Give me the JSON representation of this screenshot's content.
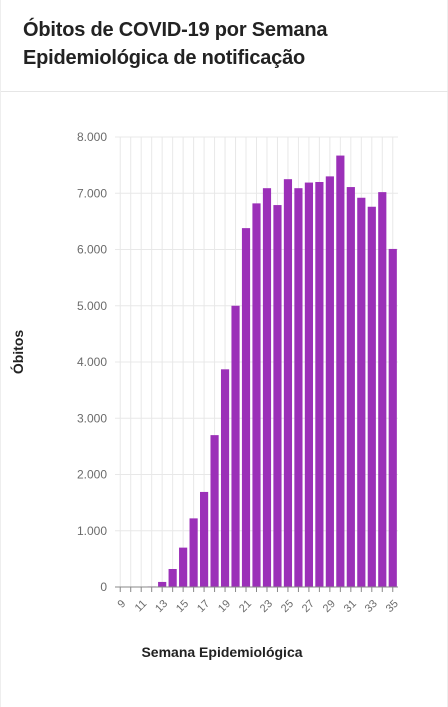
{
  "header": {
    "title": "Óbitos de COVID-19 por Semana Epidemiológica de notificação"
  },
  "colors": {
    "bar": "#9b30b8",
    "grid": "#e8e8e8",
    "axis": "#888888"
  },
  "chart_data": {
    "type": "bar",
    "title": "Óbitos de COVID-19 por Semana Epidemiológica de notificação",
    "xlabel": "Semana Epidemiológica",
    "ylabel": "Óbitos",
    "categories": [
      9,
      10,
      11,
      12,
      13,
      14,
      15,
      16,
      17,
      18,
      19,
      20,
      21,
      22,
      23,
      24,
      25,
      26,
      27,
      28,
      29,
      30,
      31,
      32,
      33,
      34,
      35
    ],
    "x_tick_labels": [
      "9",
      "11",
      "13",
      "15",
      "17",
      "19",
      "21",
      "23",
      "25",
      "27",
      "29",
      "31",
      "33",
      "35"
    ],
    "values": [
      0,
      0,
      0,
      10,
      90,
      320,
      700,
      1220,
      1690,
      2700,
      3870,
      5000,
      6380,
      6820,
      7090,
      6790,
      7250,
      7090,
      7190,
      7200,
      7300,
      7670,
      7110,
      6920,
      6760,
      7020,
      6010
    ],
    "ylim": [
      0,
      8000
    ],
    "y_ticks": [
      0,
      1000,
      2000,
      3000,
      4000,
      5000,
      6000,
      7000,
      8000
    ],
    "y_tick_labels": [
      "0",
      "1.000",
      "2.000",
      "3.000",
      "4.000",
      "5.000",
      "6.000",
      "7.000",
      "8.000"
    ],
    "grid": true,
    "legend": "none"
  }
}
